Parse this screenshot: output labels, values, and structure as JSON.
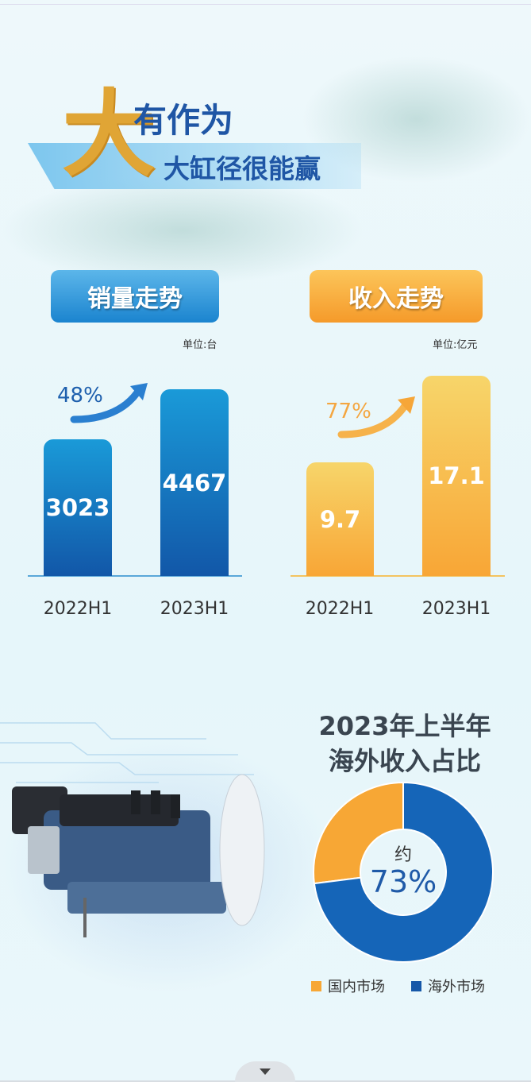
{
  "header": {
    "big_char": "大",
    "title": "有作为",
    "subtitle": "大缸径很能赢"
  },
  "colors": {
    "blue": "#1565b8",
    "orange": "#f7a735",
    "light_orange": "#f6d36a"
  },
  "chart_data": [
    {
      "type": "bar",
      "title": "销量走势",
      "unit": "单位:台",
      "categories": [
        "2022H1",
        "2023H1"
      ],
      "values": [
        3023,
        4467
      ],
      "growth_label": "48%",
      "data_labels": [
        "3023",
        "4467"
      ]
    },
    {
      "type": "bar",
      "title": "收入走势",
      "unit": "单位:亿元",
      "categories": [
        "2022H1",
        "2023H1"
      ],
      "values": [
        9.7,
        17.1
      ],
      "growth_label": "77%",
      "data_labels": [
        "9.7",
        "17.1"
      ]
    },
    {
      "type": "pie",
      "title": "2023年上半年 海外收入占比",
      "title_lines": [
        "2023年上半年",
        "海外收入占比"
      ],
      "categories": [
        "国内市场",
        "海外市场"
      ],
      "values": [
        27,
        73
      ],
      "center_prefix": "约",
      "center_label": "73%",
      "legend": "bottom"
    }
  ],
  "footer": {
    "icon": "chevron-down-icon"
  }
}
